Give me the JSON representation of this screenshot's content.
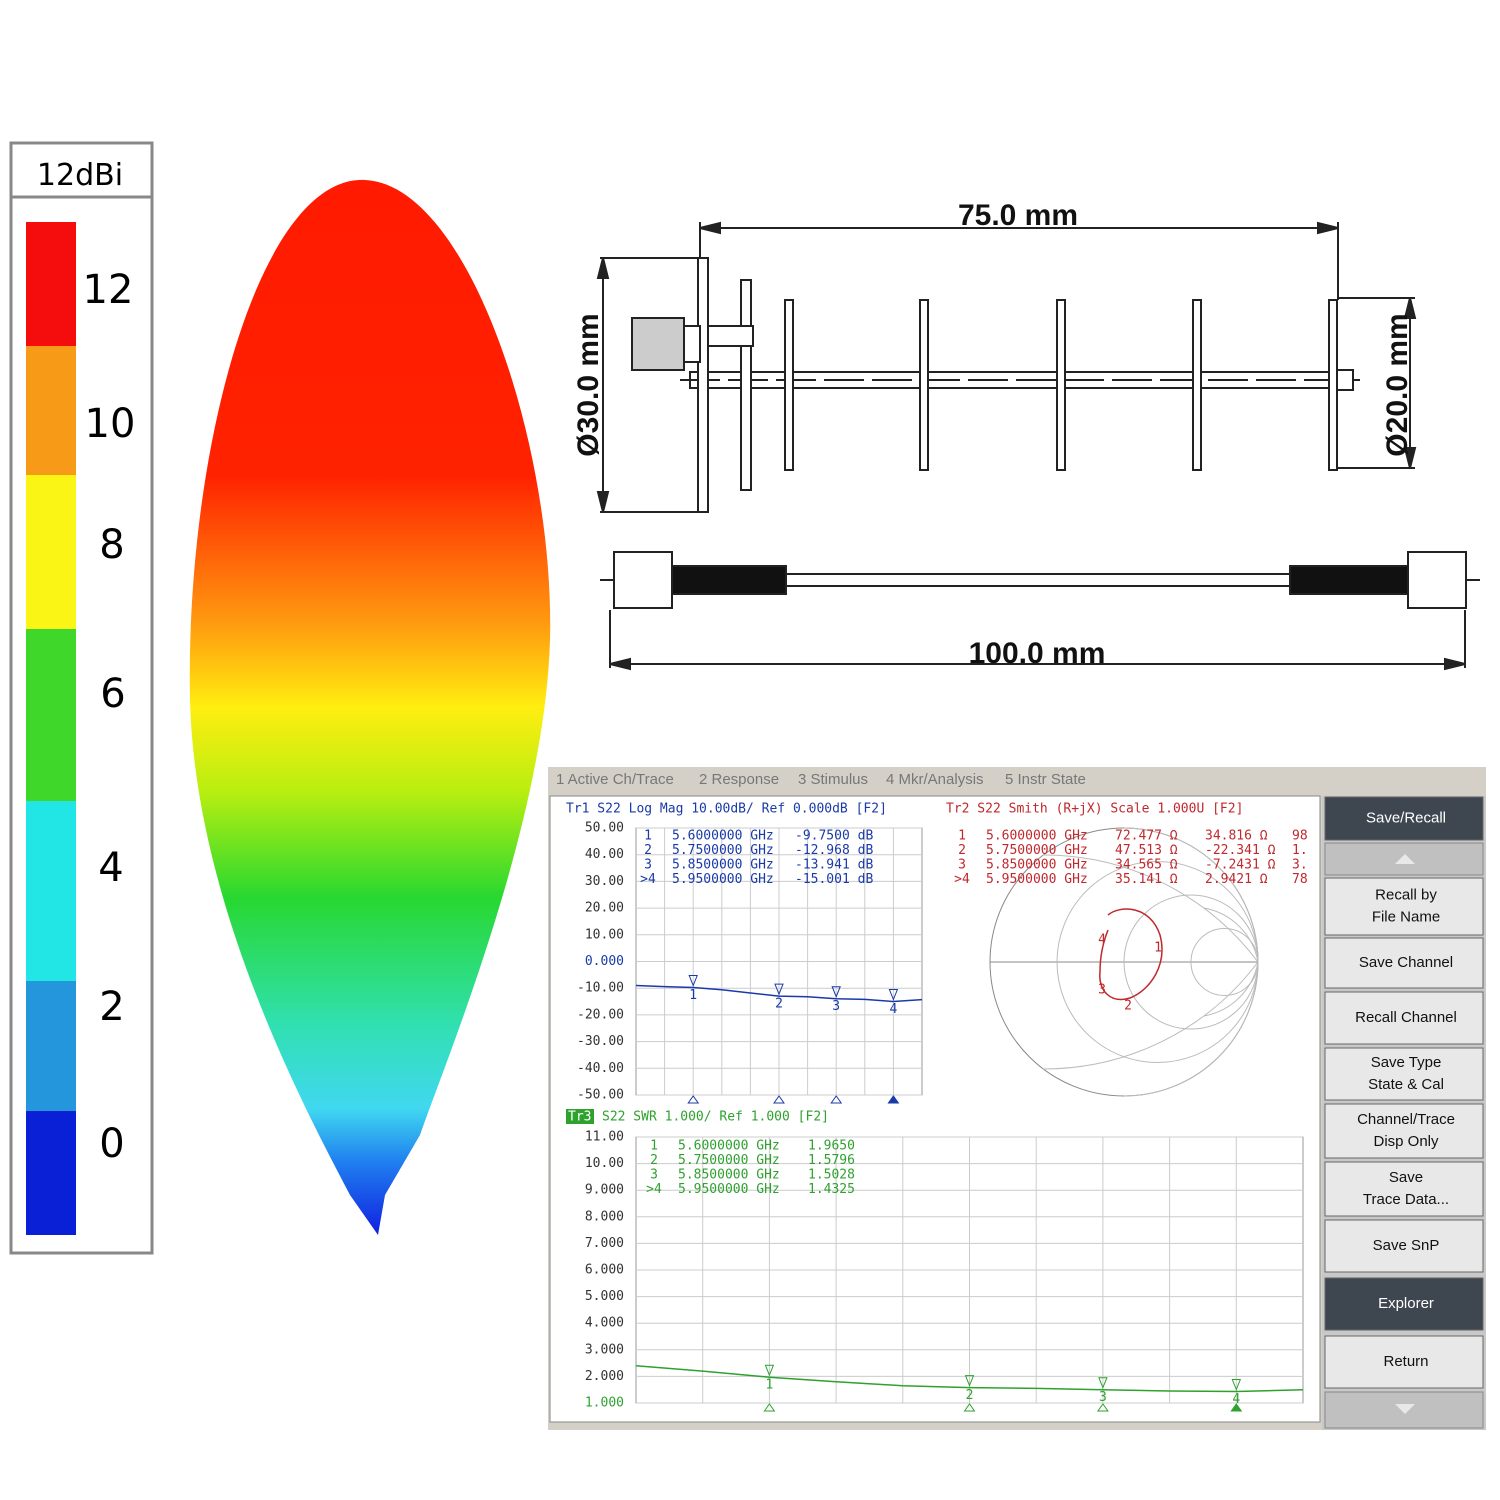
{
  "colorbar": {
    "title": "12dBi",
    "labels": [
      "12",
      "10",
      "8",
      "6",
      "4",
      "2",
      "0"
    ]
  },
  "drawing": {
    "length": "75.0 mm",
    "diameter_left": "Ø30.0 mm",
    "diameter_right": "Ø20.0 mm",
    "cable_length": "100.0 mm"
  },
  "vna": {
    "tabs": [
      "1 Active Ch/Trace",
      "2 Response",
      "3 Stimulus",
      "4 Mkr/Analysis",
      "5 Instr State"
    ],
    "softkeys": [
      [
        "Save/Recall"
      ],
      [
        "Recall by",
        "File Name"
      ],
      [
        "Save Channel"
      ],
      [
        "Recall Channel"
      ],
      [
        "Save Type",
        "State & Cal"
      ],
      [
        "Channel/Trace",
        "Disp Only"
      ],
      [
        "Save",
        "Trace Data..."
      ],
      [
        "Save SnP"
      ],
      [
        "Explorer"
      ],
      [
        "Return"
      ]
    ],
    "logmag": {
      "type": "line",
      "header": "Tr1 S22 Log Mag 10.00dB/ Ref 0.000dB [F2]",
      "color": "#1a3aa8",
      "xlim": [
        5.5,
        6.0
      ],
      "ylim": [
        -50,
        50
      ],
      "yticks": [
        {
          "value": 50,
          "label": "50.00"
        },
        {
          "value": 40,
          "label": "40.00"
        },
        {
          "value": 30,
          "label": "30.00"
        },
        {
          "value": 20,
          "label": "20.00"
        },
        {
          "value": 10,
          "label": "10.00"
        },
        {
          "value": 0,
          "label": "0.000"
        },
        {
          "value": -10,
          "label": "-10.00"
        },
        {
          "value": -20,
          "label": "-20.00"
        },
        {
          "value": -30,
          "label": "-30.00"
        },
        {
          "value": -40,
          "label": "-40.00"
        },
        {
          "value": -50,
          "label": "-50.00"
        }
      ],
      "x": [
        5.5,
        5.55,
        5.6,
        5.65,
        5.7,
        5.75,
        5.8,
        5.85,
        5.9,
        5.95,
        6.0
      ],
      "values": [
        -9.0,
        -9.4,
        -9.75,
        -10.6,
        -11.8,
        -12.97,
        -13.2,
        -13.94,
        -14.2,
        -15.0,
        -14.3
      ],
      "marker_x": [
        5.6,
        5.75,
        5.85,
        5.95
      ],
      "marker_ids": [
        "1",
        "2",
        "3",
        "4"
      ],
      "markers": [
        [
          "1",
          "5.6000000 GHz",
          "-9.7500 dB"
        ],
        [
          "2",
          "5.7500000 GHz",
          "-12.968 dB"
        ],
        [
          "3",
          "5.8500000 GHz",
          "-13.941 dB"
        ],
        [
          ">4",
          "5.9500000 GHz",
          "-15.001 dB"
        ]
      ]
    },
    "smith": {
      "header": "Tr2 S22 Smith (R+jX) Scale 1.000U [F2]",
      "color": "#c0282d",
      "marker_ids": [
        "1",
        "2",
        "3",
        "4"
      ],
      "markers": [
        [
          "1",
          "5.6000000 GHz",
          "72.477 Ω",
          "34.816 Ω",
          "98"
        ],
        [
          "2",
          "5.7500000 GHz",
          "47.513 Ω",
          "-22.341 Ω",
          "1."
        ],
        [
          "3",
          "5.8500000 GHz",
          "34.565 Ω",
          "-7.2431 Ω",
          "3."
        ],
        [
          ">4",
          "5.9500000 GHz",
          "35.141 Ω",
          "2.9421 Ω",
          "78"
        ]
      ]
    },
    "swr": {
      "type": "line",
      "trace_label": "Tr3",
      "header": "S22 SWR 1.000/ Ref 1.000 [F2]",
      "color": "#2fa12f",
      "xlim": [
        5.5,
        6.0
      ],
      "ylim": [
        1,
        11
      ],
      "yticks": [
        {
          "value": 11,
          "label": "11.00"
        },
        {
          "value": 10,
          "label": "10.00"
        },
        {
          "value": 9,
          "label": "9.000"
        },
        {
          "value": 8,
          "label": "8.000"
        },
        {
          "value": 7,
          "label": "7.000"
        },
        {
          "value": 6,
          "label": "6.000"
        },
        {
          "value": 5,
          "label": "5.000"
        },
        {
          "value": 4,
          "label": "4.000"
        },
        {
          "value": 3,
          "label": "3.000"
        },
        {
          "value": 2,
          "label": "2.000"
        },
        {
          "value": 1,
          "label": "1.000"
        }
      ],
      "x": [
        5.5,
        5.55,
        5.6,
        5.65,
        5.7,
        5.75,
        5.8,
        5.85,
        5.9,
        5.95,
        6.0
      ],
      "values": [
        2.4,
        2.2,
        1.97,
        1.8,
        1.65,
        1.58,
        1.55,
        1.5,
        1.45,
        1.43,
        1.5
      ],
      "marker_x": [
        5.6,
        5.75,
        5.85,
        5.95
      ],
      "marker_ids": [
        "1",
        "2",
        "3",
        "4"
      ],
      "markers": [
        [
          "1",
          "5.6000000 GHz",
          "1.9650"
        ],
        [
          "2",
          "5.7500000 GHz",
          "1.5796"
        ],
        [
          "3",
          "5.8500000 GHz",
          "1.5028"
        ],
        [
          ">4",
          "5.9500000 GHz",
          "1.4325"
        ]
      ]
    }
  }
}
